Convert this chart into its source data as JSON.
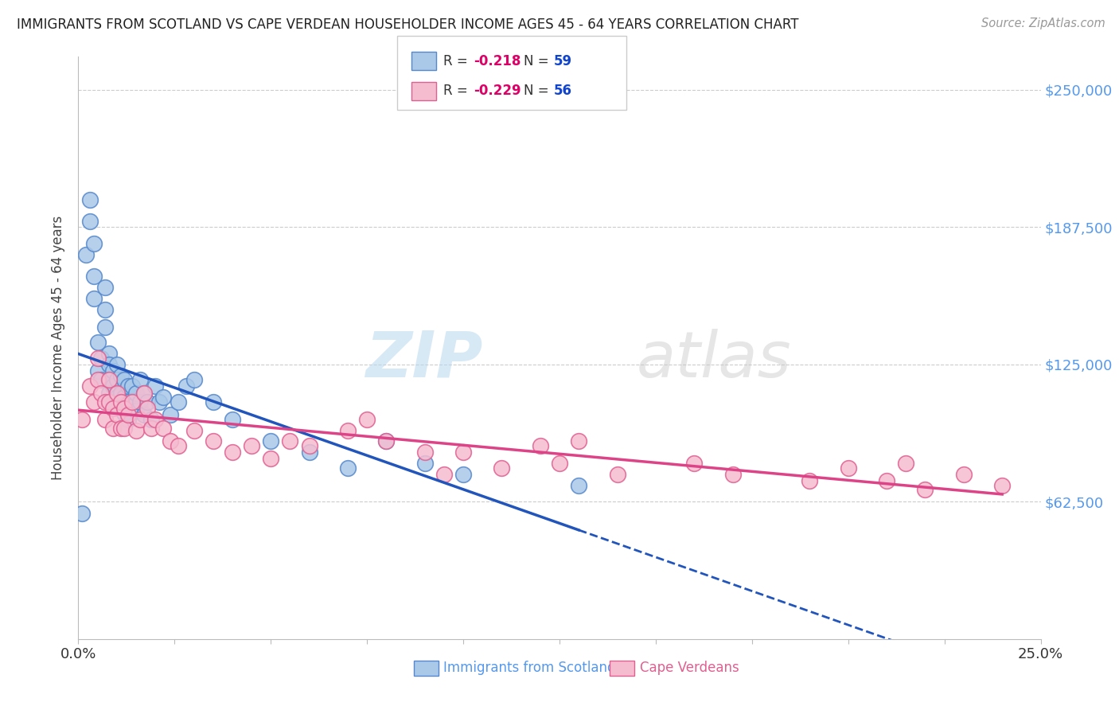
{
  "title": "IMMIGRANTS FROM SCOTLAND VS CAPE VERDEAN HOUSEHOLDER INCOME AGES 45 - 64 YEARS CORRELATION CHART",
  "source": "Source: ZipAtlas.com",
  "ylabel": "Householder Income Ages 45 - 64 years",
  "xlim": [
    0.0,
    0.25
  ],
  "ylim": [
    0,
    265000
  ],
  "xticks": [
    0.0,
    0.025,
    0.05,
    0.075,
    0.1,
    0.125,
    0.15,
    0.175,
    0.2,
    0.225,
    0.25
  ],
  "xticklabels_show": {
    "0.0": "0.0%",
    "0.25": "25.0%"
  },
  "yticks_right": [
    62500,
    125000,
    187500,
    250000
  ],
  "ytick_labels_right": [
    "$62,500",
    "$125,000",
    "$187,500",
    "$250,000"
  ],
  "scotland_color": "#aac8e8",
  "scotland_edge": "#5588cc",
  "capeverde_color": "#f5bcd0",
  "capeverde_edge": "#e06090",
  "scotland_line_color": "#2255bb",
  "capeverde_line_color": "#dd4488",
  "background_color": "#ffffff",
  "grid_color": "#cccccc",
  "watermark_color": "#c8dff0",
  "scotland_R": "-0.218",
  "scotland_N": "59",
  "capeverde_R": "-0.229",
  "capeverde_N": "56",
  "legend_R_color": "#dd0066",
  "legend_N_color": "#1144cc",
  "legend_box_color": "#ffffff",
  "legend_border_color": "#cccccc",
  "scotland_points_x": [
    0.001,
    0.002,
    0.003,
    0.003,
    0.004,
    0.004,
    0.004,
    0.005,
    0.005,
    0.006,
    0.006,
    0.007,
    0.007,
    0.007,
    0.008,
    0.008,
    0.008,
    0.008,
    0.009,
    0.009,
    0.009,
    0.01,
    0.01,
    0.01,
    0.011,
    0.011,
    0.011,
    0.012,
    0.012,
    0.012,
    0.013,
    0.013,
    0.013,
    0.014,
    0.014,
    0.015,
    0.015,
    0.016,
    0.016,
    0.017,
    0.017,
    0.018,
    0.019,
    0.02,
    0.021,
    0.022,
    0.024,
    0.026,
    0.028,
    0.03,
    0.035,
    0.04,
    0.05,
    0.06,
    0.07,
    0.08,
    0.09,
    0.1,
    0.13
  ],
  "scotland_points_y": [
    57000,
    175000,
    190000,
    200000,
    180000,
    165000,
    155000,
    135000,
    122000,
    128000,
    118000,
    160000,
    150000,
    142000,
    130000,
    125000,
    118000,
    112000,
    122000,
    115000,
    108000,
    125000,
    118000,
    110000,
    120000,
    112000,
    106000,
    118000,
    110000,
    103000,
    115000,
    108000,
    100000,
    115000,
    106000,
    112000,
    104000,
    118000,
    108000,
    112000,
    102000,
    108000,
    100000,
    115000,
    108000,
    110000,
    102000,
    108000,
    115000,
    118000,
    108000,
    100000,
    90000,
    85000,
    78000,
    90000,
    80000,
    75000,
    70000
  ],
  "capeverde_points_x": [
    0.001,
    0.003,
    0.004,
    0.005,
    0.005,
    0.006,
    0.007,
    0.007,
    0.008,
    0.008,
    0.009,
    0.009,
    0.01,
    0.01,
    0.011,
    0.011,
    0.012,
    0.012,
    0.013,
    0.014,
    0.015,
    0.016,
    0.017,
    0.018,
    0.019,
    0.02,
    0.022,
    0.024,
    0.026,
    0.03,
    0.035,
    0.04,
    0.045,
    0.05,
    0.055,
    0.06,
    0.07,
    0.075,
    0.08,
    0.09,
    0.095,
    0.1,
    0.11,
    0.12,
    0.125,
    0.13,
    0.14,
    0.16,
    0.17,
    0.19,
    0.2,
    0.21,
    0.215,
    0.22,
    0.23,
    0.24
  ],
  "capeverde_points_y": [
    100000,
    115000,
    108000,
    128000,
    118000,
    112000,
    108000,
    100000,
    118000,
    108000,
    105000,
    96000,
    112000,
    102000,
    108000,
    96000,
    105000,
    96000,
    102000,
    108000,
    95000,
    100000,
    112000,
    105000,
    96000,
    100000,
    96000,
    90000,
    88000,
    95000,
    90000,
    85000,
    88000,
    82000,
    90000,
    88000,
    95000,
    100000,
    90000,
    85000,
    75000,
    85000,
    78000,
    88000,
    80000,
    90000,
    75000,
    80000,
    75000,
    72000,
    78000,
    72000,
    80000,
    68000,
    75000,
    70000
  ]
}
